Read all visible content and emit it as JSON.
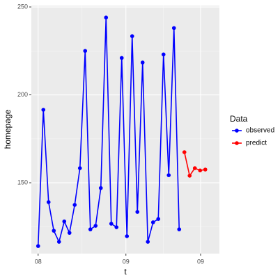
{
  "chart_data": {
    "type": "line",
    "x_label": "t",
    "y_label": "homepage",
    "legend_title": "Data",
    "x": [
      1,
      2,
      3,
      4,
      5,
      6,
      7,
      8,
      9,
      10,
      11,
      12,
      13,
      14,
      15,
      16,
      17,
      18,
      19,
      20,
      21,
      22,
      23,
      24,
      25,
      26,
      27,
      28,
      29,
      30,
      31,
      32,
      33
    ],
    "series": [
      {
        "name": "observed",
        "color": "#0000ff",
        "values": [
          114,
          191.5,
          139,
          122.7,
          116.4,
          128,
          121.5,
          137.4,
          158.3,
          225,
          123.5,
          125.5,
          147,
          244,
          126.7,
          124.7,
          221,
          119.6,
          233.4,
          133.4,
          218.4,
          116.4,
          127.5,
          129.4,
          223,
          154.3,
          238,
          123.5,
          null,
          null,
          null,
          null,
          null
        ]
      },
      {
        "name": "predict",
        "color": "#ff0000",
        "values": [
          null,
          null,
          null,
          null,
          null,
          null,
          null,
          null,
          null,
          null,
          null,
          null,
          null,
          null,
          null,
          null,
          null,
          null,
          null,
          null,
          null,
          null,
          null,
          null,
          null,
          null,
          null,
          null,
          167.4,
          154,
          158.3,
          157,
          157.5
        ]
      }
    ],
    "xlim": [
      -0.3,
      35.7
    ],
    "ylim": [
      109.7,
      250.8
    ],
    "xticks": [
      {
        "value": 1,
        "label": "08"
      },
      {
        "value": 17.8,
        "label": "09"
      },
      {
        "value": 32.1,
        "label": "09"
      }
    ],
    "yticks": [
      150,
      200,
      250
    ],
    "xminorticks": [
      9.4,
      24.95
    ],
    "yminorticks": [
      125,
      175,
      225
    ],
    "grid": true,
    "legend_position": "right"
  }
}
